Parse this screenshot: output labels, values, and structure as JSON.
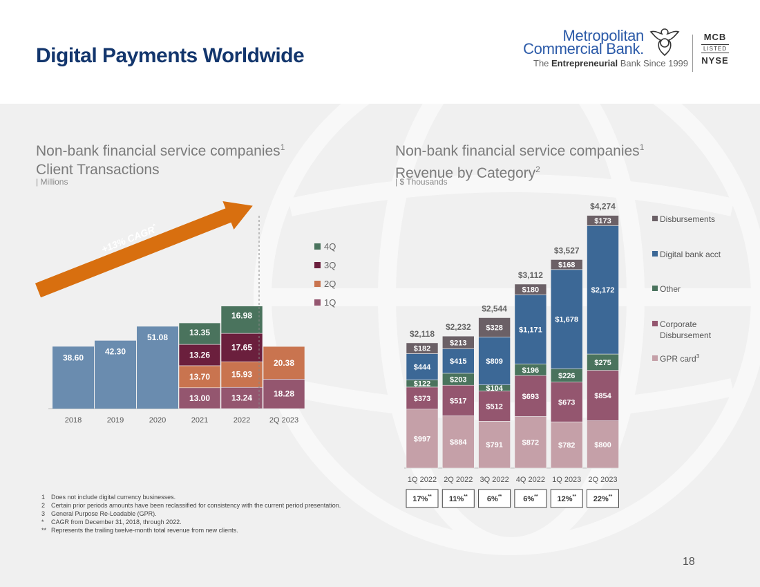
{
  "header": {
    "title": "Digital Payments Worldwide",
    "logo": {
      "name_line1": "Metropolitan",
      "name_line2": "Commercial Bank.",
      "tagline_prefix": "The ",
      "tagline_bold": "Entrepreneurial",
      "tagline_suffix": " Bank Since 1999",
      "ticker_top": "MCB",
      "ticker_middle": "LISTED",
      "ticker_bottom": "NYSE"
    }
  },
  "left_panel": {
    "title_line1": "Non-bank financial service companies",
    "title_line1_sup": "1",
    "title_line2": "Client Transactions",
    "unit": "| Millions"
  },
  "right_panel": {
    "title_line1": "Non-bank financial service companies",
    "title_line1_sup": "1",
    "title_line2": "Revenue by Category",
    "title_line2_sup": "2",
    "unit": "| $ Thousands"
  },
  "chart_data": [
    {
      "type": "bar",
      "stacked": true,
      "categories": [
        "2018",
        "2019",
        "2020",
        "2021",
        "2022",
        "2Q 2023"
      ],
      "annual_values": [
        38.6,
        42.3,
        51.08,
        null,
        null,
        null
      ],
      "annual_labels": [
        "38.60",
        "42.30",
        "51.08",
        "",
        "",
        ""
      ],
      "series": [
        {
          "name": "1Q",
          "values": [
            null,
            null,
            null,
            13.0,
            13.24,
            18.28
          ],
          "labels": [
            "",
            "",
            "",
            "13.00",
            "13.24",
            "18.28"
          ]
        },
        {
          "name": "2Q",
          "values": [
            null,
            null,
            null,
            13.7,
            15.93,
            20.38
          ],
          "labels": [
            "",
            "",
            "",
            "13.70",
            "15.93",
            "20.38"
          ]
        },
        {
          "name": "3Q",
          "values": [
            null,
            null,
            null,
            13.26,
            17.65,
            null
          ],
          "labels": [
            "",
            "",
            "",
            "13.26",
            "17.65",
            ""
          ]
        },
        {
          "name": "4Q",
          "values": [
            null,
            null,
            null,
            13.35,
            16.98,
            null
          ],
          "labels": [
            "",
            "",
            "",
            "13.35",
            "16.98",
            ""
          ]
        }
      ],
      "legend_order": [
        "4Q",
        "3Q",
        "2Q",
        "1Q"
      ],
      "legend_position": "right",
      "annotation": {
        "text": "+13% CAGR",
        "sup": "*"
      },
      "colors": {
        "annual": "#6a8caf",
        "1Q": "#94566f",
        "2Q": "#c9744f",
        "3Q": "#6b1f3d",
        "4Q": "#4a735d"
      },
      "ylim": [
        0,
        70
      ]
    },
    {
      "type": "bar",
      "stacked": true,
      "categories": [
        "1Q 2022",
        "2Q 2022",
        "3Q 2022",
        "4Q 2022",
        "1Q 2023",
        "2Q 2023"
      ],
      "series": [
        {
          "name": "GPR card",
          "name_sup": "3",
          "values": [
            997,
            884,
            791,
            872,
            782,
            800
          ],
          "labels": [
            "$997",
            "$884",
            "$791",
            "$872",
            "$782",
            "$800"
          ]
        },
        {
          "name": "Corporate Disbursement",
          "values": [
            373,
            517,
            512,
            693,
            673,
            854
          ],
          "labels": [
            "$373",
            "$517",
            "$512",
            "$693",
            "$673",
            "$854"
          ]
        },
        {
          "name": "Other",
          "values": [
            122,
            203,
            104,
            196,
            226,
            275
          ],
          "labels": [
            "$122",
            "$203",
            "$104",
            "$196",
            "$226",
            "$275"
          ]
        },
        {
          "name": "Digital bank acct",
          "values": [
            444,
            415,
            809,
            1171,
            1678,
            2172
          ],
          "labels": [
            "$444",
            "$415",
            "$809",
            "$1,171",
            "$1,678",
            "$2,172"
          ]
        },
        {
          "name": "Disbursements",
          "values": [
            182,
            213,
            328,
            180,
            168,
            173
          ],
          "labels": [
            "$182",
            "$213",
            "$328",
            "$180",
            "$168",
            "$173"
          ]
        }
      ],
      "totals": [
        2118,
        2232,
        2544,
        3112,
        3527,
        4274
      ],
      "total_labels": [
        "$2,118",
        "$2,232",
        "$2,544",
        "$3,112",
        "$3,527",
        "$4,274"
      ],
      "growth_labels": [
        "17%",
        "11%",
        "6%",
        "6%",
        "12%",
        "22%"
      ],
      "growth_sup": "**",
      "legend_order": [
        "Disbursements",
        "Digital bank acct",
        "Other",
        "Corporate Disbursement",
        "GPR card"
      ],
      "legend_position": "right",
      "colors": {
        "GPR card": "#c5a0a8",
        "Corporate Disbursement": "#94566f",
        "Other": "#4a735d",
        "Digital bank acct": "#3c6896",
        "Disbursements": "#6b6066"
      },
      "ylim": [
        0,
        4500
      ]
    }
  ],
  "footnotes": [
    {
      "mark": "1",
      "text": "Does not include digital currency businesses."
    },
    {
      "mark": "2",
      "text": "Certain prior periods amounts have been reclassified for consistency with the current period presentation."
    },
    {
      "mark": "3",
      "text": "General Purpose Re-Loadable  (GPR)."
    },
    {
      "mark": "*",
      "text": "CAGR from December 31, 2018, through 2022."
    },
    {
      "mark": "**",
      "text": "Represents the trailing twelve-month total revenue from new clients."
    }
  ],
  "page_number": "18"
}
